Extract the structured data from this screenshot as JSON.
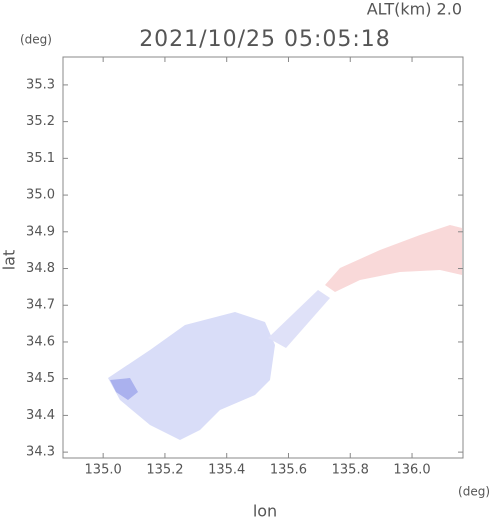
{
  "chart_data": {
    "type": "map",
    "title": "2021/10/25 05:05:18",
    "altitude_label": "ALT(km) 2.0",
    "y_unit": "(deg)",
    "x_unit": "(deg)",
    "xlabel": "lon",
    "ylabel": "lat",
    "xlim": [
      134.87,
      136.165
    ],
    "ylim": [
      34.284,
      35.376
    ],
    "xticks": [
      {
        "value": 135,
        "label": "135.0"
      },
      135.2,
      135.4,
      135.6,
      135.8,
      {
        "value": 136,
        "label": "136.0"
      }
    ],
    "yticks": [
      34.3,
      34.4,
      34.5,
      34.6,
      34.7,
      34.8,
      34.9,
      {
        "value": 35,
        "label": "35.0"
      },
      35.1,
      35.2,
      35.3
    ]
  }
}
